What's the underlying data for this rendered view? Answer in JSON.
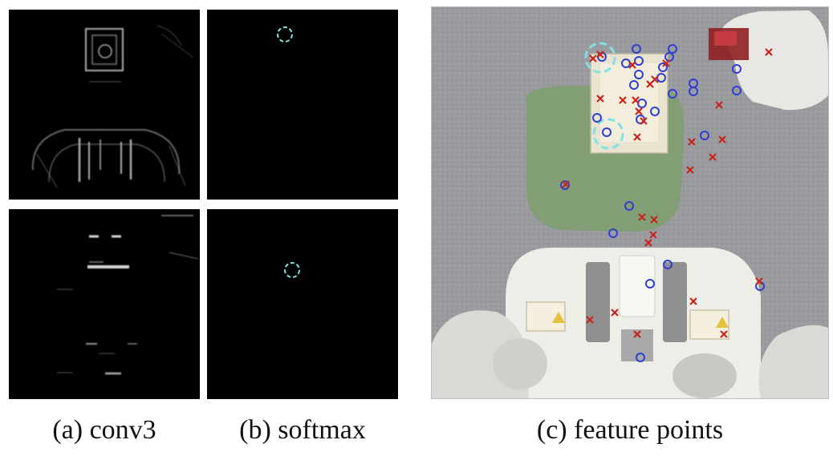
{
  "figure": {
    "panels": [
      {
        "id": "a",
        "caption": "(a) conv3",
        "kind": "conv-activation"
      },
      {
        "id": "b",
        "caption": "(b) softmax",
        "kind": "softmax-map"
      },
      {
        "id": "c",
        "caption": "(c) feature points",
        "kind": "robot-scene"
      }
    ],
    "colors": {
      "highlight_circle": "#7fe3e8",
      "marker_o": "#2e3fd0",
      "marker_x": "#c8241c",
      "background_panel": "#000000"
    },
    "icons": {
      "o_marker": "circle-marker-icon",
      "x_marker": "cross-marker-icon",
      "highlight": "dashed-circle-icon"
    }
  }
}
